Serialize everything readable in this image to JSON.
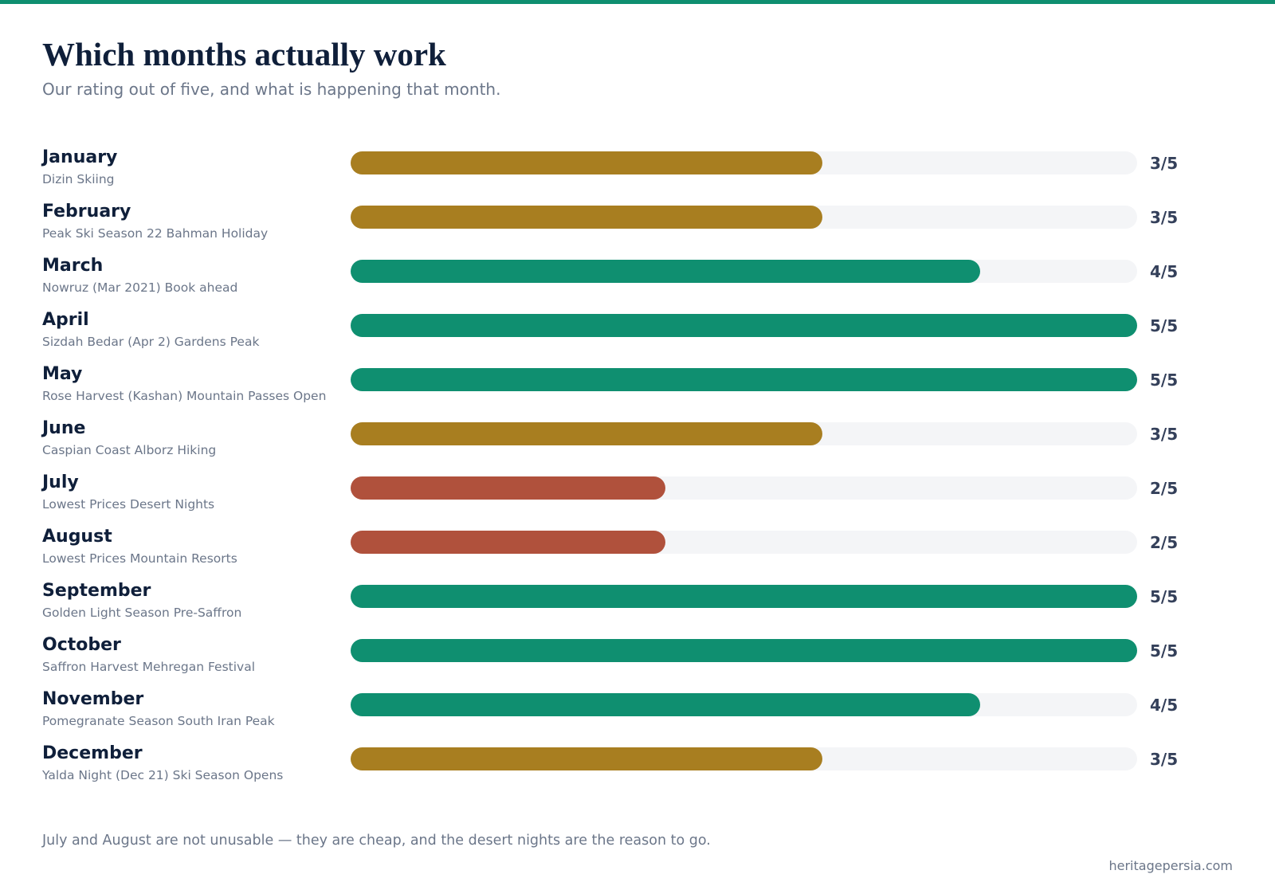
{
  "title": "Which months actually work",
  "subtitle": "Our rating out of five, and what is happening that month.",
  "footnote": "July and August are not unusable — they are cheap, and the desert nights are the reason to go.",
  "source": "heritagepersia.com",
  "colors": {
    "accent": "#0f8f70",
    "good": "#0f8f70",
    "ok": "#a87e20",
    "poor": "#b0513c",
    "track": "#f4f5f7"
  },
  "chart_data": {
    "type": "bar",
    "orientation": "horizontal",
    "title": "Which months actually work",
    "subtitle": "Our rating out of five, and what is happening that month.",
    "xlim": [
      0,
      5
    ],
    "grid": false,
    "categories": [
      "January",
      "February",
      "March",
      "April",
      "May",
      "June",
      "July",
      "August",
      "September",
      "October",
      "November",
      "December"
    ],
    "values": [
      3,
      3,
      4,
      5,
      5,
      3,
      2,
      2,
      5,
      5,
      4,
      3
    ],
    "notes": [
      "Dizin Skiing",
      "Peak Ski Season 22 Bahman Holiday",
      "Nowruz (Mar 2021) Book ahead",
      "Sizdah Bedar (Apr 2) Gardens Peak",
      "Rose Harvest (Kashan) Mountain Passes Open",
      "Caspian Coast Alborz Hiking",
      "Lowest Prices Desert Nights",
      "Lowest Prices Mountain Resorts",
      "Golden Light Season Pre-Saffron",
      "Saffron Harvest Mehregan Festival",
      "Pomegranate Season South Iran Peak",
      "Yalda Night (Dec 21) Ski Season Opens"
    ],
    "value_labels": [
      "3/5",
      "3/5",
      "4/5",
      "5/5",
      "5/5",
      "3/5",
      "2/5",
      "2/5",
      "5/5",
      "5/5",
      "4/5",
      "3/5"
    ]
  }
}
